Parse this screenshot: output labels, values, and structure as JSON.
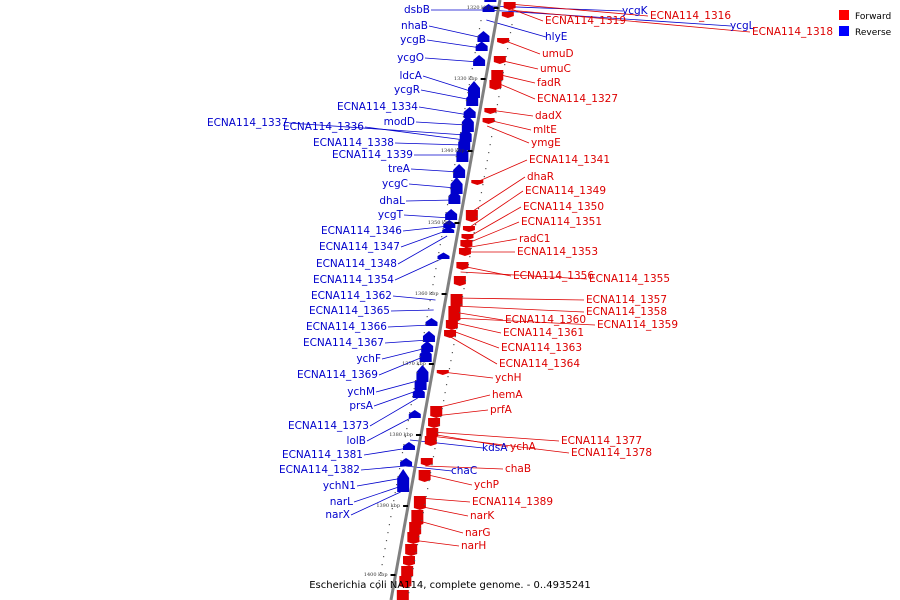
{
  "caption": "Escherichia coli NA114, complete genome. - 0..4935241",
  "legend": [
    {
      "label": "Forward",
      "color": "#ff0000"
    },
    {
      "label": "Reverse",
      "color": "#0000ff"
    }
  ],
  "colors": {
    "forward": "#dd0000",
    "reverse": "#0000cc",
    "axis": "#808080"
  },
  "ticks": [
    "1320 kbp",
    "1330 kbp",
    "1340 kbp",
    "1350 kbp",
    "1360 kbp",
    "1370 kbp",
    "1380 kbp",
    "1390 kbp",
    "1400 kbp"
  ],
  "reverse_genes": [
    "dsbB",
    "nhaB",
    "ycgB",
    "ycgO",
    "ldcA",
    "ycgR",
    "ECNA114_1334",
    "modD",
    "ECNA114_1337",
    "ECNA114_1336",
    "ECNA114_1338",
    "ECNA114_1339",
    "treA",
    "ycgC",
    "dhaL",
    "ycgT",
    "ECNA114_1346",
    "ECNA114_1347",
    "ECNA114_1348",
    "ECNA114_1354",
    "ECNA114_1362",
    "ECNA114_1365",
    "ECNA114_1366",
    "ECNA114_1367",
    "ychF",
    "ECNA114_1369",
    "ychM",
    "prsA",
    "ECNA114_1373",
    "lolB",
    "ECNA114_1381",
    "ECNA114_1382",
    "ychN1",
    "narL",
    "narX",
    "ycgK",
    "hlyE",
    "ycgL",
    "kdsA",
    "chaC"
  ],
  "forward_genes": [
    "ECNA114_1316",
    "ECNA114_1319",
    "ECNA114_1318",
    "umuD",
    "umuC",
    "fadR",
    "ECNA114_1327",
    "dadX",
    "mltE",
    "ymgE",
    "ECNA114_1341",
    "dhaR",
    "ECNA114_1349",
    "ECNA114_1350",
    "ECNA114_1351",
    "radC1",
    "ECNA114_1353",
    "ECNA114_1356",
    "ECNA114_1355",
    "ECNA114_1357",
    "ECNA114_1358",
    "ECNA114_1360",
    "ECNA114_1359",
    "ECNA114_1361",
    "ECNA114_1363",
    "ECNA114_1364",
    "ychH",
    "hemA",
    "prfA",
    "ECNA114_1377",
    "ychA",
    "ECNA114_1378",
    "chaB",
    "ychP",
    "ECNA114_1389",
    "narK",
    "narG",
    "narH"
  ]
}
